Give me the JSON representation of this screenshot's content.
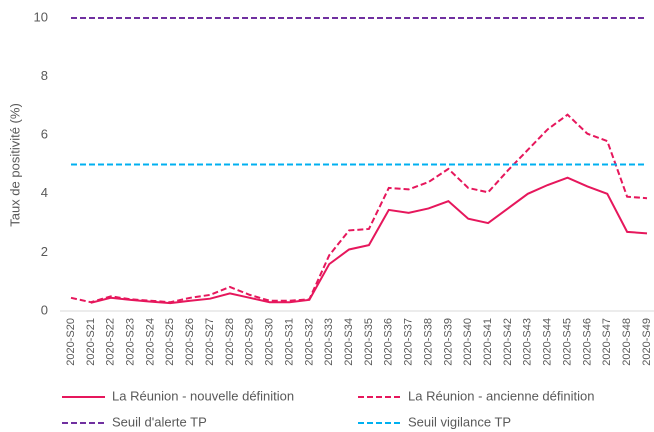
{
  "chart_data": {
    "type": "line",
    "y_label": "Taux de positivité (%)",
    "categories": [
      "2020-S20",
      "2020-S21",
      "2020-S22",
      "2020-S23",
      "2020-S24",
      "2020-S25",
      "2020-S26",
      "2020-S27",
      "2020-S28",
      "2020-S29",
      "2020-S30",
      "2020-S31",
      "2020-S32",
      "2020-S33",
      "2020-S34",
      "2020-S35",
      "2020-S36",
      "2020-S37",
      "2020-S38",
      "2020-S39",
      "2020-S40",
      "2020-S41",
      "2020-S42",
      "2020-S43",
      "2020-S44",
      "2020-S45",
      "2020-S46",
      "2020-S47",
      "2020-S48",
      "2020-S49"
    ],
    "series": [
      {
        "name": "La Réunion - nouvelle définition",
        "color": "#e6175c",
        "dash": false,
        "values": [
          null,
          0.28,
          0.45,
          0.38,
          0.32,
          0.27,
          0.35,
          0.42,
          0.6,
          0.45,
          0.3,
          0.3,
          0.38,
          1.6,
          2.1,
          2.25,
          3.45,
          3.35,
          3.5,
          3.75,
          3.15,
          3.0,
          3.5,
          4.0,
          4.3,
          4.55,
          4.25,
          4.0,
          2.7,
          2.65
        ]
      },
      {
        "name": "La Réunion - ancienne définition",
        "color": "#e6175c",
        "dash": true,
        "values": [
          0.45,
          0.3,
          0.5,
          0.4,
          0.35,
          0.3,
          0.45,
          0.55,
          0.82,
          0.55,
          0.35,
          0.35,
          0.4,
          1.9,
          2.75,
          2.8,
          4.2,
          4.15,
          4.4,
          4.85,
          4.2,
          4.05,
          4.8,
          5.5,
          6.2,
          6.7,
          6.05,
          5.8,
          3.9,
          3.85
        ]
      },
      {
        "name": "Seuil d'alerte TP",
        "color": "#7030a0",
        "dash": true,
        "values": [
          10,
          10,
          10,
          10,
          10,
          10,
          10,
          10,
          10,
          10,
          10,
          10,
          10,
          10,
          10,
          10,
          10,
          10,
          10,
          10,
          10,
          10,
          10,
          10,
          10,
          10,
          10,
          10,
          10,
          10
        ]
      },
      {
        "name": "Seuil vigilance TP",
        "color": "#00b0f0",
        "dash": true,
        "values": [
          5,
          5,
          5,
          5,
          5,
          5,
          5,
          5,
          5,
          5,
          5,
          5,
          5,
          5,
          5,
          5,
          5,
          5,
          5,
          5,
          5,
          5,
          5,
          5,
          5,
          5,
          5,
          5,
          5,
          5
        ]
      }
    ],
    "ylim": [
      0,
      10
    ],
    "yticks": [
      0,
      2,
      4,
      6,
      8,
      10
    ]
  }
}
